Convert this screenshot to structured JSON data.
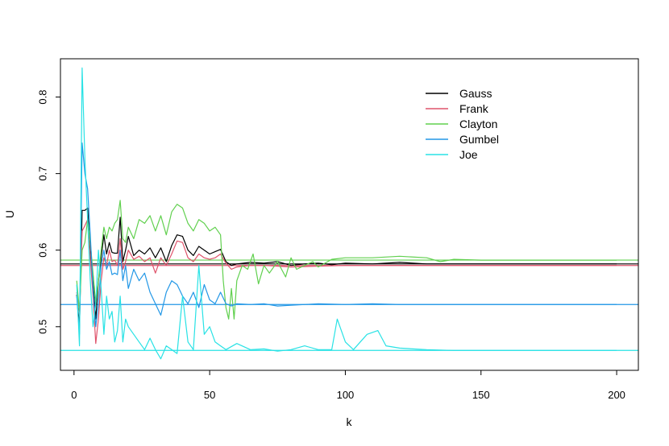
{
  "chart_data": {
    "type": "line",
    "title": "",
    "xlabel": "k",
    "ylabel": "U",
    "xlim": [
      -5,
      208
    ],
    "ylim": [
      0.443,
      0.85
    ],
    "x_ticks": [
      0,
      50,
      100,
      150,
      200
    ],
    "y_ticks": [
      0.5,
      0.6,
      0.7,
      0.8
    ],
    "x_tick_labels": [
      "0",
      "50",
      "100",
      "150",
      "200"
    ],
    "y_tick_labels": [
      "0.5",
      "0.6",
      "0.7",
      "0.8"
    ],
    "legend_position": "top-right",
    "grid": false,
    "series": [
      {
        "name": "Gauss",
        "color": "#000000",
        "reference": 0.582,
        "points": [
          [
            1,
            0.542
          ],
          [
            2,
            0.5
          ],
          [
            3,
            0.652
          ],
          [
            4,
            0.652
          ],
          [
            5,
            0.655
          ],
          [
            6,
            0.6
          ],
          [
            7,
            0.56
          ],
          [
            8,
            0.51
          ],
          [
            9,
            0.56
          ],
          [
            10,
            0.59
          ],
          [
            11,
            0.62
          ],
          [
            12,
            0.595
          ],
          [
            13,
            0.61
          ],
          [
            14,
            0.597
          ],
          [
            15,
            0.596
          ],
          [
            16,
            0.596
          ],
          [
            17,
            0.643
          ],
          [
            18,
            0.585
          ],
          [
            19,
            0.6
          ],
          [
            20,
            0.618
          ],
          [
            22,
            0.593
          ],
          [
            24,
            0.6
          ],
          [
            26,
            0.595
          ],
          [
            28,
            0.603
          ],
          [
            30,
            0.59
          ],
          [
            32,
            0.603
          ],
          [
            34,
            0.585
          ],
          [
            36,
            0.606
          ],
          [
            38,
            0.62
          ],
          [
            40,
            0.618
          ],
          [
            42,
            0.6
          ],
          [
            44,
            0.593
          ],
          [
            46,
            0.605
          ],
          [
            48,
            0.6
          ],
          [
            50,
            0.595
          ],
          [
            52,
            0.598
          ],
          [
            54,
            0.601
          ],
          [
            56,
            0.585
          ],
          [
            58,
            0.58
          ],
          [
            60,
            0.582
          ],
          [
            65,
            0.584
          ],
          [
            70,
            0.583
          ],
          [
            75,
            0.585
          ],
          [
            80,
            0.58
          ],
          [
            85,
            0.582
          ],
          [
            90,
            0.583
          ],
          [
            95,
            0.581
          ],
          [
            100,
            0.583
          ],
          [
            110,
            0.582
          ],
          [
            120,
            0.584
          ],
          [
            130,
            0.582
          ],
          [
            150,
            0.582
          ],
          [
            200,
            0.582
          ]
        ]
      },
      {
        "name": "Frank",
        "color": "#df536b",
        "reference": 0.58,
        "points": [
          [
            1,
            0.545
          ],
          [
            2,
            0.52
          ],
          [
            3,
            0.625
          ],
          [
            4,
            0.632
          ],
          [
            5,
            0.64
          ],
          [
            6,
            0.59
          ],
          [
            7,
            0.54
          ],
          [
            8,
            0.478
          ],
          [
            9,
            0.51
          ],
          [
            10,
            0.56
          ],
          [
            11,
            0.59
          ],
          [
            12,
            0.58
          ],
          [
            13,
            0.6
          ],
          [
            14,
            0.585
          ],
          [
            15,
            0.587
          ],
          [
            16,
            0.58
          ],
          [
            17,
            0.615
          ],
          [
            18,
            0.575
          ],
          [
            19,
            0.585
          ],
          [
            20,
            0.6
          ],
          [
            22,
            0.588
          ],
          [
            24,
            0.592
          ],
          [
            26,
            0.585
          ],
          [
            28,
            0.59
          ],
          [
            30,
            0.57
          ],
          [
            32,
            0.59
          ],
          [
            34,
            0.58
          ],
          [
            36,
            0.595
          ],
          [
            38,
            0.612
          ],
          [
            40,
            0.61
          ],
          [
            42,
            0.59
          ],
          [
            44,
            0.585
          ],
          [
            46,
            0.595
          ],
          [
            48,
            0.59
          ],
          [
            50,
            0.588
          ],
          [
            52,
            0.59
          ],
          [
            54,
            0.595
          ],
          [
            56,
            0.583
          ],
          [
            58,
            0.575
          ],
          [
            60,
            0.578
          ],
          [
            65,
            0.58
          ],
          [
            70,
            0.58
          ],
          [
            80,
            0.578
          ],
          [
            100,
            0.58
          ],
          [
            150,
            0.58
          ],
          [
            200,
            0.58
          ]
        ]
      },
      {
        "name": "Clayton",
        "color": "#61d04f",
        "reference": 0.587,
        "points": [
          [
            1,
            0.56
          ],
          [
            2,
            0.52
          ],
          [
            3,
            0.6
          ],
          [
            4,
            0.61
          ],
          [
            5,
            0.64
          ],
          [
            6,
            0.61
          ],
          [
            7,
            0.57
          ],
          [
            8,
            0.53
          ],
          [
            9,
            0.56
          ],
          [
            10,
            0.6
          ],
          [
            11,
            0.63
          ],
          [
            12,
            0.615
          ],
          [
            13,
            0.63
          ],
          [
            14,
            0.625
          ],
          [
            15,
            0.635
          ],
          [
            16,
            0.64
          ],
          [
            17,
            0.665
          ],
          [
            18,
            0.615
          ],
          [
            19,
            0.61
          ],
          [
            20,
            0.63
          ],
          [
            22,
            0.615
          ],
          [
            24,
            0.64
          ],
          [
            26,
            0.635
          ],
          [
            28,
            0.645
          ],
          [
            30,
            0.625
          ],
          [
            32,
            0.645
          ],
          [
            34,
            0.62
          ],
          [
            36,
            0.65
          ],
          [
            38,
            0.66
          ],
          [
            40,
            0.655
          ],
          [
            42,
            0.635
          ],
          [
            44,
            0.625
          ],
          [
            46,
            0.64
          ],
          [
            48,
            0.635
          ],
          [
            50,
            0.625
          ],
          [
            52,
            0.63
          ],
          [
            54,
            0.62
          ],
          [
            55,
            0.56
          ],
          [
            56,
            0.525
          ],
          [
            57,
            0.51
          ],
          [
            58,
            0.55
          ],
          [
            59,
            0.51
          ],
          [
            60,
            0.56
          ],
          [
            62,
            0.58
          ],
          [
            64,
            0.575
          ],
          [
            66,
            0.595
          ],
          [
            68,
            0.556
          ],
          [
            70,
            0.58
          ],
          [
            72,
            0.57
          ],
          [
            75,
            0.585
          ],
          [
            78,
            0.565
          ],
          [
            80,
            0.59
          ],
          [
            82,
            0.575
          ],
          [
            85,
            0.58
          ],
          [
            88,
            0.585
          ],
          [
            90,
            0.578
          ],
          [
            95,
            0.588
          ],
          [
            100,
            0.59
          ],
          [
            110,
            0.59
          ],
          [
            120,
            0.592
          ],
          [
            130,
            0.59
          ],
          [
            135,
            0.585
          ],
          [
            140,
            0.588
          ],
          [
            150,
            0.587
          ],
          [
            200,
            0.587
          ]
        ]
      },
      {
        "name": "Gumbel",
        "color": "#2297e6",
        "reference": 0.529,
        "points": [
          [
            1,
            0.54
          ],
          [
            2,
            0.49
          ],
          [
            3,
            0.74
          ],
          [
            4,
            0.7
          ],
          [
            5,
            0.68
          ],
          [
            6,
            0.62
          ],
          [
            7,
            0.55
          ],
          [
            8,
            0.5
          ],
          [
            9,
            0.53
          ],
          [
            10,
            0.58
          ],
          [
            11,
            0.6
          ],
          [
            12,
            0.575
          ],
          [
            13,
            0.585
          ],
          [
            14,
            0.568
          ],
          [
            15,
            0.57
          ],
          [
            16,
            0.568
          ],
          [
            17,
            0.6
          ],
          [
            18,
            0.56
          ],
          [
            19,
            0.58
          ],
          [
            20,
            0.55
          ],
          [
            22,
            0.575
          ],
          [
            24,
            0.56
          ],
          [
            26,
            0.57
          ],
          [
            28,
            0.545
          ],
          [
            30,
            0.53
          ],
          [
            32,
            0.515
          ],
          [
            34,
            0.545
          ],
          [
            36,
            0.56
          ],
          [
            38,
            0.555
          ],
          [
            40,
            0.54
          ],
          [
            42,
            0.53
          ],
          [
            44,
            0.545
          ],
          [
            46,
            0.525
          ],
          [
            48,
            0.555
          ],
          [
            50,
            0.535
          ],
          [
            52,
            0.53
          ],
          [
            54,
            0.545
          ],
          [
            56,
            0.53
          ],
          [
            58,
            0.527
          ],
          [
            60,
            0.53
          ],
          [
            65,
            0.529
          ],
          [
            70,
            0.53
          ],
          [
            75,
            0.527
          ],
          [
            80,
            0.528
          ],
          [
            90,
            0.53
          ],
          [
            100,
            0.529
          ],
          [
            110,
            0.53
          ],
          [
            120,
            0.529
          ],
          [
            150,
            0.529
          ],
          [
            200,
            0.529
          ]
        ]
      },
      {
        "name": "Joe",
        "color": "#28e2e5",
        "reference": 0.469,
        "points": [
          [
            1,
            0.555
          ],
          [
            2,
            0.475
          ],
          [
            3,
            0.838
          ],
          [
            4,
            0.72
          ],
          [
            5,
            0.64
          ],
          [
            6,
            0.56
          ],
          [
            7,
            0.5
          ],
          [
            8,
            0.53
          ],
          [
            9,
            0.6
          ],
          [
            10,
            0.55
          ],
          [
            11,
            0.49
          ],
          [
            12,
            0.54
          ],
          [
            13,
            0.51
          ],
          [
            14,
            0.52
          ],
          [
            15,
            0.48
          ],
          [
            16,
            0.495
          ],
          [
            17,
            0.54
          ],
          [
            18,
            0.48
          ],
          [
            19,
            0.51
          ],
          [
            20,
            0.5
          ],
          [
            22,
            0.49
          ],
          [
            24,
            0.48
          ],
          [
            26,
            0.47
          ],
          [
            28,
            0.485
          ],
          [
            30,
            0.47
          ],
          [
            32,
            0.458
          ],
          [
            34,
            0.475
          ],
          [
            36,
            0.47
          ],
          [
            38,
            0.465
          ],
          [
            40,
            0.54
          ],
          [
            42,
            0.48
          ],
          [
            44,
            0.47
          ],
          [
            46,
            0.58
          ],
          [
            48,
            0.49
          ],
          [
            50,
            0.5
          ],
          [
            52,
            0.48
          ],
          [
            54,
            0.475
          ],
          [
            56,
            0.47
          ],
          [
            60,
            0.478
          ],
          [
            65,
            0.47
          ],
          [
            70,
            0.471
          ],
          [
            75,
            0.468
          ],
          [
            80,
            0.47
          ],
          [
            85,
            0.475
          ],
          [
            90,
            0.47
          ],
          [
            95,
            0.47
          ],
          [
            97,
            0.51
          ],
          [
            100,
            0.48
          ],
          [
            103,
            0.47
          ],
          [
            108,
            0.49
          ],
          [
            112,
            0.495
          ],
          [
            115,
            0.475
          ],
          [
            120,
            0.472
          ],
          [
            130,
            0.47
          ],
          [
            140,
            0.469
          ],
          [
            150,
            0.469
          ],
          [
            200,
            0.469
          ]
        ]
      }
    ]
  }
}
